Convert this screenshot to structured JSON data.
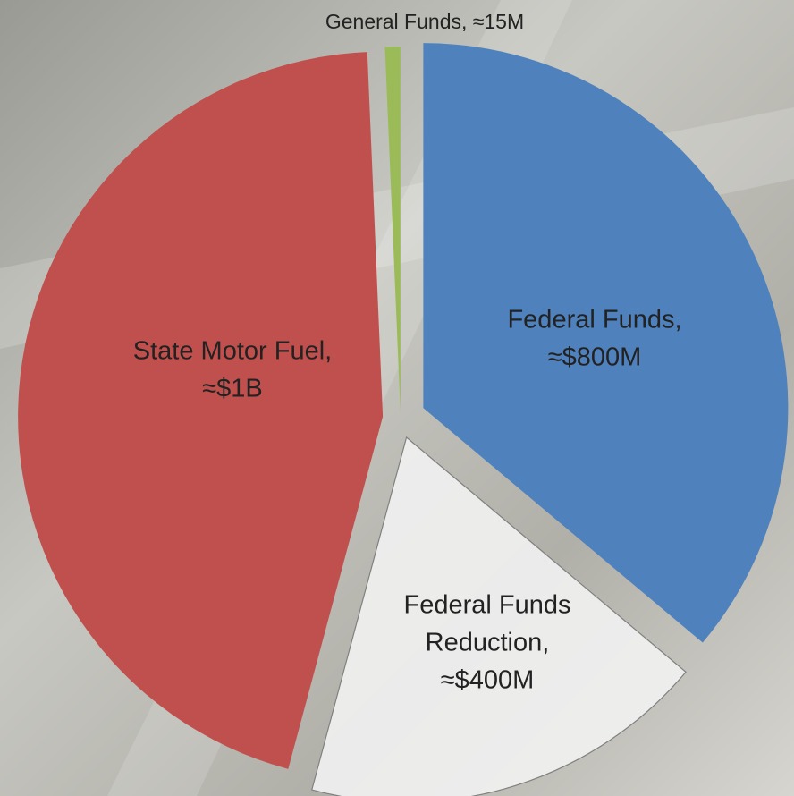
{
  "chart_data": {
    "type": "pie",
    "values": [
      800,
      400,
      1000,
      15
    ],
    "value_labels": [
      [
        "Federal Funds,",
        "≈$800M"
      ],
      [
        "Federal Funds",
        "Reduction,",
        "≈$400M"
      ],
      [
        "State Motor Fuel,",
        "≈$1B"
      ],
      [
        "General Funds, ≈15M"
      ]
    ],
    "colors": [
      "#4f81bd",
      "#f2f2f2",
      "#c0504d",
      "#9bbb59"
    ]
  }
}
